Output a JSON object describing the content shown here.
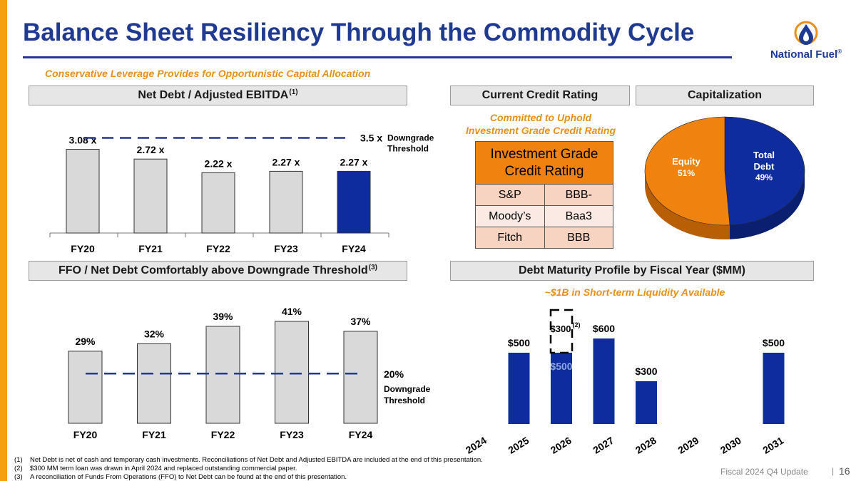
{
  "title": "Balance Sheet Resiliency Through the Commodity Cycle",
  "subtitle": "Conservative Leverage Provides for Opportunistic Capital Allocation",
  "logo": {
    "text": "National Fuel",
    "trademark": "®",
    "icon": "flame-drop-icon",
    "colors": {
      "ring": "#e8901c",
      "drop": "#1f3a93"
    }
  },
  "sections": {
    "net_debt": {
      "label": "Net Debt / Adjusted EBITDA",
      "sup": "(1)"
    },
    "ffo": {
      "label": "FFO / Net Debt Comfortably above Downgrade Threshold",
      "sup": "(3)"
    },
    "credit": {
      "label": "Current Credit Rating"
    },
    "capitalization": {
      "label": "Capitalization"
    },
    "maturity": {
      "label": "Debt Maturity Profile by Fiscal Year ($MM)"
    }
  },
  "credit_note": {
    "line1": "Committed to Uphold",
    "line2": "Investment Grade Credit Rating"
  },
  "liquidity_note": "~$1B in Short-term Liquidity Available",
  "credit_table": {
    "header_line1": "Investment Grade",
    "header_line2": "Credit Rating",
    "rows": [
      {
        "agency": "S&P",
        "rating": "BBB-"
      },
      {
        "agency": "Moody’s",
        "rating": "Baa3"
      },
      {
        "agency": "Fitch",
        "rating": "BBB"
      }
    ]
  },
  "chart_data": [
    {
      "id": "net_debt_ebitda",
      "type": "bar",
      "title": "Net Debt / Adjusted EBITDA",
      "categories": [
        "FY20",
        "FY21",
        "FY22",
        "FY23",
        "FY24"
      ],
      "values": [
        3.08,
        2.72,
        2.22,
        2.27,
        2.27
      ],
      "labels": [
        "3.08 x",
        "2.72 x",
        "2.22 x",
        "2.27 x",
        "2.27 x"
      ],
      "highlight_index": 4,
      "ylim": [
        0,
        3.8
      ],
      "threshold": {
        "value": 3.5,
        "label": "3.5 x",
        "text_line1": "Downgrade",
        "text_line2": "Threshold"
      },
      "colors": {
        "bar": "#d9d9d9",
        "highlight": "#0e2c9e",
        "threshold": "#1f3a93"
      }
    },
    {
      "id": "ffo_net_debt",
      "type": "bar",
      "title": "FFO / Net Debt",
      "categories": [
        "FY20",
        "FY21",
        "FY22",
        "FY23",
        "FY24"
      ],
      "values": [
        29,
        32,
        39,
        41,
        37
      ],
      "labels": [
        "29%",
        "32%",
        "39%",
        "41%",
        "37%"
      ],
      "ylim": [
        0,
        43
      ],
      "threshold": {
        "value": 20,
        "label": "20%",
        "text_line1": "Downgrade",
        "text_line2": "Threshold"
      },
      "colors": {
        "bar": "#d9d9d9",
        "threshold": "#1f3a93"
      }
    },
    {
      "id": "capitalization",
      "type": "pie",
      "title": "Capitalization",
      "slices": [
        {
          "name": "Total Debt",
          "value": 49,
          "label_line1": "Total",
          "label_line2": "Debt",
          "pct": "49%",
          "color": "#0e2c9e",
          "side": "#0a1f70"
        },
        {
          "name": "Equity",
          "value": 51,
          "label_line1": "Equity",
          "label_line2": "",
          "pct": "51%",
          "color": "#f0820f",
          "side": "#b85f06"
        }
      ]
    },
    {
      "id": "debt_maturity",
      "type": "bar",
      "title": "Debt Maturity Profile by Fiscal Year ($MM)",
      "categories": [
        "2024",
        "2025",
        "2026",
        "2027",
        "2028",
        "2029",
        "2030",
        "2031"
      ],
      "values": [
        0,
        500,
        500,
        600,
        300,
        0,
        0,
        500
      ],
      "labels": [
        "",
        "$500",
        "$500",
        "$600",
        "$300",
        "",
        "",
        "$500"
      ],
      "stacked_extra": {
        "index": 2,
        "value": 300,
        "label": "$300",
        "sup": "(2)",
        "style": "dashed"
      },
      "ylim": [
        0,
        1000
      ],
      "colors": {
        "bar": "#0e2c9e",
        "label_on_bar": "#8fa6e8"
      }
    }
  ],
  "footnotes": [
    {
      "num": "(1)",
      "text": "Net Debt is net of cash and temporary cash investments.  Reconciliations of Net Debt and Adjusted EBITDA are included at the end of this presentation."
    },
    {
      "num": "(2)",
      "text": "$300 MM term loan was drawn in April 2024 and replaced outstanding commercial paper."
    },
    {
      "num": "(3)",
      "text": "A reconciliation of Funds From Operations (FFO) to Net Debt can be found at the end of this presentation."
    }
  ],
  "footer": {
    "label": "Fiscal 2024 Q4 Update",
    "separator": "|",
    "page": "16"
  }
}
